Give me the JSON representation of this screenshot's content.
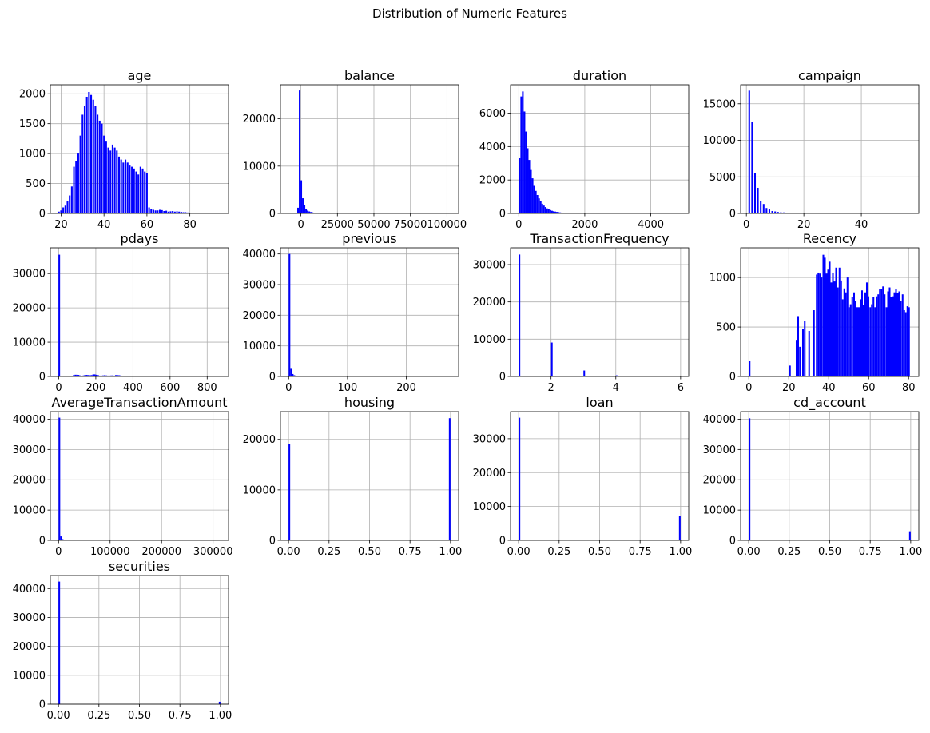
{
  "figure": {
    "title": "Distribution of Numeric Features",
    "bar_color": "#0000ff",
    "grid_color": "#b0b0b0"
  },
  "chart_data": [
    {
      "type": "bar",
      "title": "age",
      "grid": true,
      "xlim": [
        15,
        98
      ],
      "ylim": [
        0,
        2150
      ],
      "xticks": [
        20,
        40,
        60,
        80
      ],
      "xtick_labels": [
        "20",
        "40",
        "60",
        "80"
      ],
      "yticks": [
        0,
        500,
        1000,
        1500,
        2000
      ],
      "ytick_labels": [
        "0",
        "500",
        "1000",
        "1500",
        "2000"
      ],
      "bin_range": [
        18,
        95
      ],
      "x": [
        18,
        19,
        20,
        21,
        22,
        23,
        24,
        25,
        26,
        27,
        28,
        29,
        30,
        31,
        32,
        33,
        34,
        35,
        36,
        37,
        38,
        39,
        40,
        41,
        42,
        43,
        44,
        45,
        46,
        47,
        48,
        49,
        50,
        51,
        52,
        53,
        54,
        55,
        56,
        57,
        58,
        59,
        60,
        61,
        62,
        63,
        64,
        65,
        66,
        67,
        68,
        69,
        70,
        71,
        72,
        73,
        74,
        75,
        76,
        77,
        78,
        79,
        80,
        81,
        82,
        83,
        84,
        85,
        86,
        87,
        88,
        89,
        90,
        91,
        92,
        93,
        94
      ],
      "values": [
        10,
        30,
        50,
        100,
        130,
        200,
        300,
        450,
        780,
        880,
        1000,
        1300,
        1650,
        1800,
        1950,
        2030,
        1980,
        1900,
        1800,
        1650,
        1550,
        1500,
        1300,
        1200,
        1100,
        1050,
        1150,
        1100,
        1050,
        950,
        900,
        850,
        900,
        850,
        800,
        780,
        750,
        700,
        650,
        780,
        750,
        700,
        680,
        100,
        80,
        60,
        50,
        50,
        60,
        55,
        40,
        45,
        30,
        35,
        40,
        30,
        35,
        30,
        25,
        20,
        20,
        15,
        10,
        10,
        8,
        8,
        6,
        5,
        4,
        4,
        3,
        3,
        2,
        2,
        2,
        2,
        1
      ]
    },
    {
      "type": "bar",
      "title": "balance",
      "grid": true,
      "xlim": [
        -14000,
        108000
      ],
      "ylim": [
        0,
        27200
      ],
      "xticks": [
        0,
        25000,
        50000,
        75000,
        100000
      ],
      "xtick_labels": [
        "0",
        "25000",
        "50000",
        "75000",
        "100000"
      ],
      "yticks": [
        0,
        10000,
        20000
      ],
      "ytick_labels": [
        "0",
        "10000",
        "20000"
      ],
      "bin_range": [
        -8000,
        102000
      ],
      "x": [
        -7450,
        -6350,
        -5250,
        -4150,
        -3050,
        -1950,
        -850,
        250,
        1350,
        2450,
        3550,
        4650,
        5750,
        6850,
        7950,
        9050,
        10150,
        11250,
        12350,
        13450,
        14550
      ],
      "values": [
        5,
        10,
        20,
        40,
        120,
        1200,
        26000,
        7000,
        3200,
        1800,
        1000,
        600,
        420,
        300,
        220,
        150,
        100,
        70,
        50,
        30,
        20
      ]
    },
    {
      "type": "bar",
      "title": "duration",
      "grid": true,
      "xlim": [
        -250,
        5150
      ],
      "ylim": [
        0,
        7700
      ],
      "xticks": [
        0,
        2000,
        4000
      ],
      "xtick_labels": [
        "0",
        "2000",
        "4000"
      ],
      "yticks": [
        0,
        2000,
        4000,
        6000
      ],
      "ytick_labels": [
        "0",
        "2000",
        "4000",
        "6000"
      ],
      "bin_range": [
        0,
        4918
      ],
      "x": [
        25,
        74,
        123,
        172,
        221,
        270,
        319,
        368,
        418,
        467,
        516,
        565,
        614,
        663,
        712,
        761,
        811,
        860,
        909,
        958,
        1007,
        1056,
        1105,
        1155,
        1204,
        1253,
        1302,
        1351,
        1400,
        1450,
        1500,
        1600,
        1700,
        1800,
        1900,
        2000,
        2100,
        2200,
        2400,
        2600
      ],
      "values": [
        3300,
        7000,
        7300,
        6100,
        4900,
        3900,
        3200,
        2600,
        2100,
        1650,
        1350,
        1100,
        900,
        720,
        580,
        470,
        380,
        300,
        250,
        200,
        160,
        130,
        110,
        90,
        75,
        60,
        50,
        40,
        32,
        26,
        20,
        15,
        12,
        9,
        7,
        5,
        4,
        3,
        2,
        1
      ]
    },
    {
      "type": "bar",
      "title": "campaign",
      "grid": true,
      "xlim": [
        -2,
        60
      ],
      "ylim": [
        0,
        17600
      ],
      "xticks": [
        0,
        20,
        40
      ],
      "xtick_labels": [
        "0",
        "20",
        "40"
      ],
      "yticks": [
        0,
        5000,
        10000,
        15000
      ],
      "ytick_labels": [
        "0",
        "5000",
        "10000",
        "15000"
      ],
      "bin_range": [
        1,
        58
      ],
      "x": [
        1,
        2,
        3,
        4,
        5,
        6,
        7,
        8,
        9,
        10,
        11,
        12,
        13,
        14,
        15,
        16,
        17,
        18,
        19,
        20,
        21,
        22,
        23,
        24,
        25,
        26,
        28,
        29,
        30,
        31,
        32,
        33,
        35,
        38,
        41,
        43,
        44,
        50,
        51,
        55,
        58
      ],
      "values": [
        16800,
        12500,
        5500,
        3500,
        1750,
        1290,
        740,
        540,
        330,
        270,
        200,
        155,
        135,
        95,
        85,
        80,
        70,
        35,
        25,
        40,
        25,
        20,
        20,
        15,
        20,
        10,
        15,
        10,
        10,
        10,
        10,
        6,
        5,
        5,
        4,
        3,
        2,
        2,
        2,
        1,
        1
      ]
    },
    {
      "type": "bar",
      "title": "pdays",
      "grid": true,
      "xlim": [
        -45,
        915
      ],
      "ylim": [
        0,
        37500
      ],
      "xticks": [
        0,
        200,
        400,
        600,
        800
      ],
      "xtick_labels": [
        "0",
        "200",
        "400",
        "600",
        "800"
      ],
      "yticks": [
        0,
        10000,
        20000,
        30000
      ],
      "ytick_labels": [
        "0",
        "10000",
        "20000",
        "30000"
      ],
      "bin_range": [
        -1,
        871
      ],
      "x": [
        3,
        12,
        20,
        29,
        38,
        47,
        55,
        64,
        73,
        81,
        90,
        99,
        107,
        116,
        125,
        134,
        142,
        151,
        160,
        168,
        177,
        186,
        194,
        203,
        212,
        221,
        229,
        238,
        247,
        256,
        264,
        273,
        282,
        290,
        299,
        308,
        316,
        325,
        334,
        343,
        351,
        360,
        369,
        377,
        386,
        395,
        404,
        412,
        421,
        430,
        438,
        447,
        456,
        465,
        473,
        482,
        491,
        499,
        508,
        517,
        525,
        534,
        543,
        552,
        560,
        569,
        578,
        586,
        595,
        604,
        612,
        621,
        630,
        638,
        647,
        656,
        664,
        673,
        682,
        690,
        699,
        708,
        716,
        725,
        734,
        743,
        751,
        760,
        769,
        777,
        786,
        795,
        804,
        812,
        821,
        830,
        838,
        847,
        856,
        865
      ],
      "values": [
        35500,
        50,
        60,
        70,
        80,
        100,
        120,
        150,
        200,
        400,
        500,
        500,
        450,
        300,
        200,
        300,
        400,
        450,
        400,
        350,
        400,
        600,
        600,
        500,
        400,
        250,
        200,
        300,
        350,
        300,
        250,
        250,
        280,
        300,
        250,
        400,
        400,
        350,
        300,
        200,
        100,
        50,
        40,
        30,
        30,
        30,
        25,
        20,
        20,
        20,
        15,
        15,
        10,
        10,
        10,
        10,
        8,
        8,
        6,
        6,
        5,
        5,
        4,
        4,
        4,
        3,
        3,
        3,
        2,
        2,
        2,
        2,
        2,
        2,
        1,
        1,
        1,
        1,
        1,
        1,
        1,
        1,
        1,
        1,
        1,
        1,
        1,
        1,
        1,
        1,
        1,
        1,
        1,
        1,
        1,
        1,
        1,
        1,
        1,
        1
      ]
    },
    {
      "type": "bar",
      "title": "previous",
      "grid": true,
      "xlim": [
        -14,
        289
      ],
      "ylim": [
        0,
        42000
      ],
      "xticks": [
        0,
        100,
        200
      ],
      "xtick_labels": [
        "0",
        "100",
        "200"
      ],
      "yticks": [
        0,
        10000,
        20000,
        30000,
        40000
      ],
      "ytick_labels": [
        "0",
        "10000",
        "20000",
        "30000",
        "40000"
      ],
      "bin_range": [
        0,
        275
      ],
      "x": [
        1.375,
        4.125,
        6.875,
        9.625,
        12.375,
        15.125,
        17.875,
        20.625,
        23.375,
        26.125,
        28.875,
        37.125,
        50.875,
        275
      ],
      "values": [
        40000,
        2500,
        800,
        400,
        250,
        120,
        60,
        40,
        20,
        10,
        5,
        3,
        2,
        1
      ]
    },
    {
      "type": "bar",
      "title": "TransactionFrequency",
      "grid": true,
      "xlim": [
        0.75,
        6.25
      ],
      "ylim": [
        0,
        34500
      ],
      "xticks": [
        2,
        4,
        6
      ],
      "xtick_labels": [
        "2",
        "4",
        "6"
      ],
      "yticks": [
        0,
        10000,
        20000,
        30000
      ],
      "ytick_labels": [
        "0",
        "10000",
        "20000",
        "30000"
      ],
      "bin_range": [
        1,
        6
      ],
      "x": [
        1.025,
        2.025,
        3.025,
        4.025,
        5.025,
        5.975
      ],
      "values": [
        32700,
        9100,
        1600,
        300,
        60,
        15
      ]
    },
    {
      "type": "bar",
      "title": "Recency",
      "grid": true,
      "xlim": [
        -4.1,
        85.1
      ],
      "ylim": [
        0,
        1300
      ],
      "xticks": [
        0,
        20,
        40,
        60,
        80
      ],
      "xtick_labels": [
        "0",
        "20",
        "40",
        "60",
        "80"
      ],
      "yticks": [
        0,
        500,
        1000
      ],
      "ytick_labels": [
        "0",
        "500",
        "1000"
      ],
      "bin_range": [
        0,
        81
      ],
      "x": [
        0.4,
        20.6,
        23.9,
        24.7,
        25.6,
        27.1,
        28.0,
        30.2,
        32.6,
        34.0,
        34.8,
        35.6,
        36.4,
        37.3,
        38.1,
        38.9,
        39.7,
        40.5,
        41.3,
        42.1,
        42.9,
        43.7,
        44.6,
        45.4,
        46.2,
        47.0,
        47.8,
        48.6,
        49.4,
        50.2,
        51.0,
        51.8,
        52.7,
        53.5,
        54.3,
        55.1,
        55.9,
        56.7,
        57.5,
        58.3,
        59.1,
        59.9,
        60.8,
        61.6,
        62.4,
        63.2,
        64.0,
        64.8,
        65.6,
        66.4,
        67.2,
        68.0,
        68.9,
        69.7,
        70.5,
        71.3,
        72.1,
        72.9,
        73.7,
        74.5,
        75.3,
        76.1,
        77.0,
        77.8,
        78.6,
        79.4,
        80.2
      ],
      "values": [
        160,
        110,
        370,
        610,
        300,
        480,
        560,
        460,
        670,
        1030,
        1050,
        1040,
        1000,
        1230,
        1200,
        1040,
        1080,
        1160,
        950,
        1050,
        960,
        1100,
        900,
        1100,
        970,
        780,
        890,
        850,
        1000,
        700,
        730,
        800,
        850,
        760,
        700,
        700,
        780,
        870,
        720,
        850,
        950,
        810,
        700,
        730,
        800,
        700,
        810,
        830,
        880,
        880,
        910,
        830,
        700,
        860,
        900,
        800,
        810,
        850,
        880,
        840,
        860,
        760,
        830,
        670,
        650,
        710,
        700
      ]
    },
    {
      "type": "bar",
      "title": "AverageTransactionAmount",
      "grid": true,
      "xlim": [
        -16000,
        330000
      ],
      "ylim": [
        0,
        42500
      ],
      "xticks": [
        0,
        100000,
        200000,
        300000
      ],
      "xtick_labels": [
        "0",
        "100000",
        "200000",
        "300000"
      ],
      "yticks": [
        0,
        10000,
        20000,
        30000,
        40000
      ],
      "ytick_labels": [
        "0",
        "10000",
        "20000",
        "30000",
        "40000"
      ],
      "bin_range": [
        0,
        315000
      ],
      "x": [
        1575,
        4725,
        7875,
        11025,
        14175,
        17325
      ],
      "values": [
        40500,
        1300,
        400,
        200,
        100,
        50
      ]
    },
    {
      "type": "bar",
      "title": "housing",
      "grid": true,
      "xlim": [
        -0.05,
        1.05
      ],
      "ylim": [
        0,
        25500
      ],
      "xticks": [
        0,
        0.25,
        0.5,
        0.75,
        1.0
      ],
      "xtick_labels": [
        "0.00",
        "0.25",
        "0.50",
        "0.75",
        "1.00"
      ],
      "yticks": [
        0,
        10000,
        20000
      ],
      "ytick_labels": [
        "0",
        "10000",
        "20000"
      ],
      "bin_range": [
        0,
        1
      ],
      "x": [
        0.005,
        0.995
      ],
      "values": [
        19100,
        24200
      ]
    },
    {
      "type": "bar",
      "title": "loan",
      "grid": true,
      "xlim": [
        -0.05,
        1.05
      ],
      "ylim": [
        0,
        38000
      ],
      "xticks": [
        0,
        0.25,
        0.5,
        0.75,
        1.0
      ],
      "xtick_labels": [
        "0.00",
        "0.25",
        "0.50",
        "0.75",
        "1.00"
      ],
      "yticks": [
        0,
        10000,
        20000,
        30000
      ],
      "ytick_labels": [
        "0",
        "10000",
        "20000",
        "30000"
      ],
      "bin_range": [
        0,
        1
      ],
      "x": [
        0.005,
        0.995
      ],
      "values": [
        36200,
        7100
      ]
    },
    {
      "type": "bar",
      "title": "cd_account",
      "grid": true,
      "xlim": [
        -0.05,
        1.05
      ],
      "ylim": [
        0,
        42500
      ],
      "xticks": [
        0,
        0.25,
        0.5,
        0.75,
        1.0
      ],
      "xtick_labels": [
        "0.00",
        "0.25",
        "0.50",
        "0.75",
        "1.00"
      ],
      "yticks": [
        0,
        10000,
        20000,
        30000,
        40000
      ],
      "ytick_labels": [
        "0",
        "10000",
        "20000",
        "30000",
        "40000"
      ],
      "bin_range": [
        0,
        1
      ],
      "x": [
        0.005,
        0.995
      ],
      "values": [
        40300,
        3000
      ]
    },
    {
      "type": "bar",
      "title": "securities",
      "grid": true,
      "xlim": [
        -0.05,
        1.05
      ],
      "ylim": [
        0,
        44500
      ],
      "xticks": [
        0,
        0.25,
        0.5,
        0.75,
        1.0
      ],
      "xtick_labels": [
        "0.00",
        "0.25",
        "0.50",
        "0.75",
        "1.00"
      ],
      "yticks": [
        0,
        10000,
        20000,
        30000,
        40000
      ],
      "ytick_labels": [
        "0",
        "10000",
        "20000",
        "30000",
        "40000"
      ],
      "bin_range": [
        0,
        1
      ],
      "x": [
        0.005,
        0.995
      ],
      "values": [
        42400,
        850
      ]
    }
  ]
}
